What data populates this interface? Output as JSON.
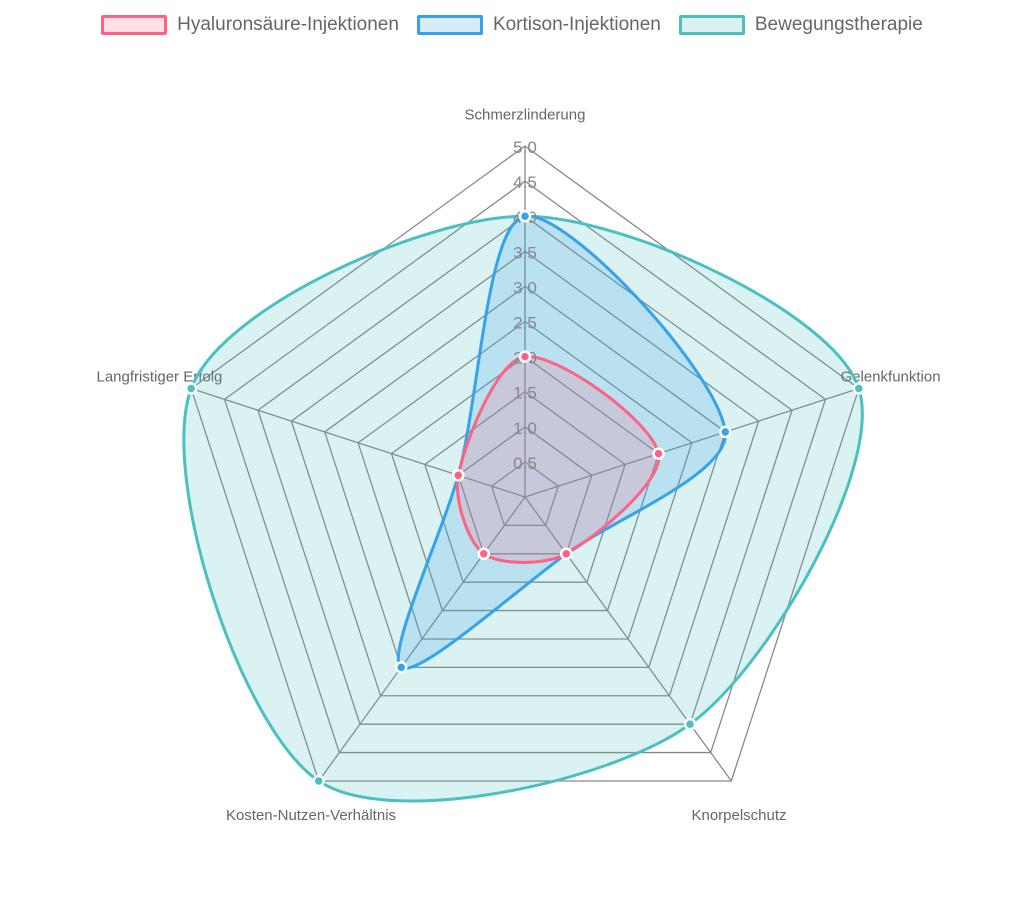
{
  "chart_data": {
    "type": "radar",
    "labels": [
      "Schmerzlinderung",
      "Gelenkfunktion",
      "Knorpelschutz",
      "Kosten-Nutzen-Verhältnis",
      "Langfristiger Erfolg"
    ],
    "rlim": [
      0,
      5
    ],
    "ticks": [
      "0.5",
      "1.0",
      "1.5",
      "2.0",
      "2.5",
      "3.0",
      "3.5",
      "4.0",
      "4.5",
      "5.0"
    ],
    "legend_position": "top",
    "series": [
      {
        "name": "Hyaluronsäure-Injektionen",
        "values": [
          2,
          2,
          1,
          1,
          1
        ],
        "color": "#ff6384",
        "fill": "rgba(255,99,132,0.2)"
      },
      {
        "name": "Kortison-Injektionen",
        "values": [
          4,
          3,
          1,
          3,
          1
        ],
        "color": "#36a2eb",
        "fill": "rgba(54,162,235,0.2)"
      },
      {
        "name": "Bewegungstherapie",
        "values": [
          4,
          5,
          4,
          5,
          5
        ],
        "color": "#4bc0c0",
        "fill": "rgba(75,192,192,0.2)"
      }
    ]
  }
}
